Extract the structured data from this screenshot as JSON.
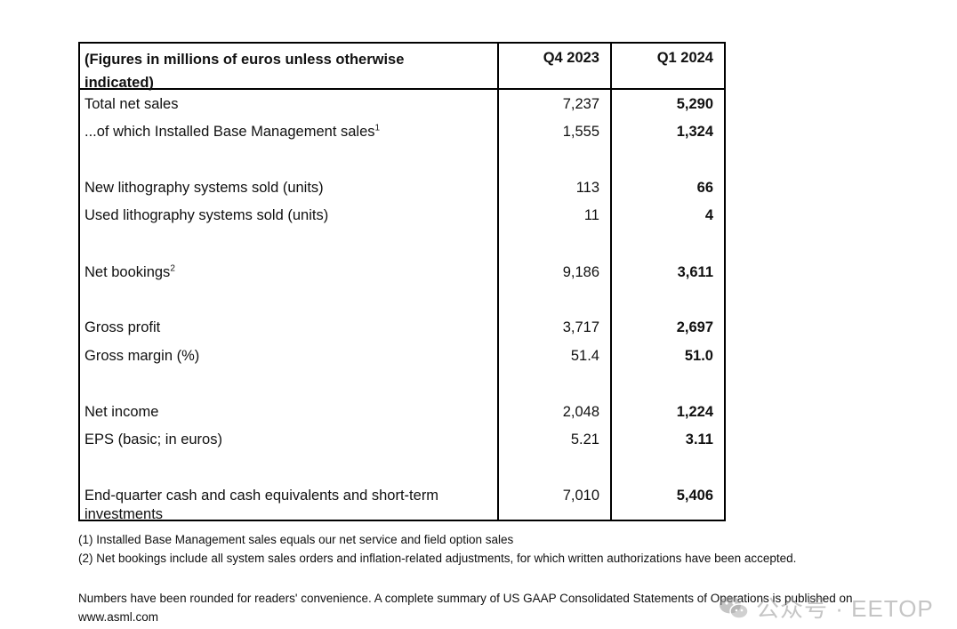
{
  "table": {
    "header": {
      "label": "(Figures in millions of euros unless otherwise indicated)",
      "col_q4": "Q4 2023",
      "col_q1": "Q1 2024"
    },
    "rows": [
      {
        "label": "Total net sales",
        "sup": "",
        "q4": "7,237",
        "q1": "5,290"
      },
      {
        "label": "...of which Installed Base Management sales",
        "sup": "1",
        "q4": "1,555",
        "q1": "1,324"
      },
      {
        "label": "New lithography systems sold (units)",
        "sup": "",
        "q4": "113",
        "q1": "66"
      },
      {
        "label": "Used lithography systems sold (units)",
        "sup": "",
        "q4": "11",
        "q1": "4"
      },
      {
        "label": "Net bookings",
        "sup": "2",
        "q4": "9,186",
        "q1": "3,611"
      },
      {
        "label": "Gross profit",
        "sup": "",
        "q4": "3,717",
        "q1": "2,697"
      },
      {
        "label": "Gross margin (%)",
        "sup": "",
        "q4": "51.4",
        "q1": "51.0"
      },
      {
        "label": "Net income",
        "sup": "",
        "q4": "2,048",
        "q1": "1,224"
      },
      {
        "label": "EPS (basic; in euros)",
        "sup": "",
        "q4": "5.21",
        "q1": "3.11"
      },
      {
        "label": "End-quarter cash and cash equivalents and short-term investments",
        "sup": "",
        "q4": "7,010",
        "q1": "5,406"
      }
    ]
  },
  "footnotes": {
    "f1": "(1) Installed Base Management sales equals our net service and field option sales",
    "f2": "(2) Net bookings include all system sales orders and inflation-related adjustments, for which written authorizations have been accepted."
  },
  "note": "Numbers have been rounded for readers' convenience. A complete summary of US GAAP Consolidated Statements of Operations is published on www.asml.com",
  "watermark": {
    "text": "公众号 · EETOP",
    "icon": "wechat-icon"
  }
}
